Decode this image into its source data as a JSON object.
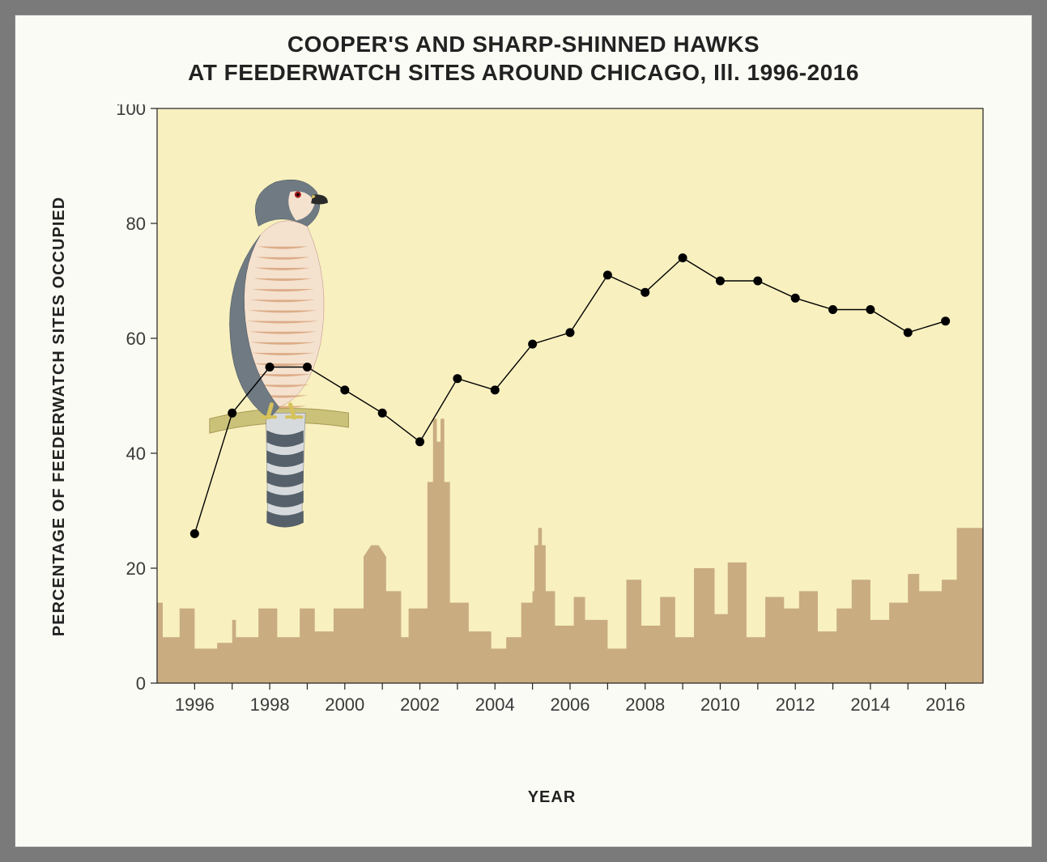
{
  "chart": {
    "type": "line",
    "title_line1": "COOPER'S AND SHARP-SHINNED HAWKS",
    "title_line2": "AT FEEDERWATCH SITES AROUND CHICAGO, Ill. 1996-2016",
    "title_fontsize": 28,
    "xlabel": "YEAR",
    "ylabel": "PERCENTAGE OF FEEDERWATCH SITES OCCUPIED",
    "label_fontsize": 20,
    "tick_fontsize": 22,
    "background_color": "#fafbf4",
    "plot_background_color": "#f8f0bf",
    "frame_color": "#7a7a7a",
    "axis_color": "#222222",
    "tick_color": "#3a3a3a",
    "line_color": "#000000",
    "line_width": 1.4,
    "marker_color": "#000000",
    "marker_radius": 5.5,
    "skyline_color": "#c9ac80",
    "ylim": [
      0,
      100
    ],
    "ytick_step": 20,
    "yticks": [
      0,
      20,
      40,
      60,
      80,
      100
    ],
    "xlim": [
      1995,
      2017
    ],
    "xtick_step": 2,
    "xtick_labels": [
      1996,
      1998,
      2000,
      2002,
      2004,
      2006,
      2008,
      2010,
      2012,
      2014,
      2016
    ],
    "years": [
      1996,
      1997,
      1998,
      1999,
      2000,
      2001,
      2002,
      2003,
      2004,
      2005,
      2006,
      2007,
      2008,
      2009,
      2010,
      2011,
      2012,
      2013,
      2014,
      2015,
      2016
    ],
    "values": [
      26,
      47,
      55,
      55,
      51,
      47,
      42,
      53,
      51,
      59,
      61,
      71,
      68,
      74,
      70,
      70,
      67,
      65,
      65,
      61,
      63
    ],
    "hawk": {
      "body_gray": "#6f7a82",
      "breast_light": "#f4e1ce",
      "breast_bar": "#d49a6f",
      "eye_color": "#a31c1c",
      "beak_dark": "#2a2a2a",
      "beak_yellow": "#d6c25a",
      "leg_yellow": "#d6c25a",
      "branch_color": "#cbc27a",
      "tail_light": "#d7dadc",
      "tail_dark": "#55606a"
    }
  }
}
